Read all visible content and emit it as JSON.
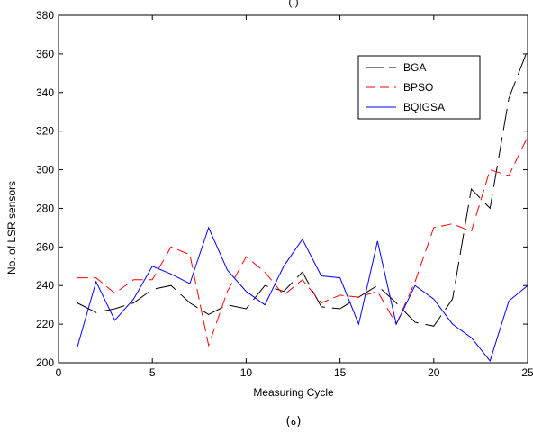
{
  "chart_data": {
    "type": "line",
    "title_fragment": "(.)",
    "xlabel": "Measuring Cycle",
    "ylabel": "No. of LSR sensors",
    "caption": "(ه)",
    "xlim": [
      0,
      25
    ],
    "ylim": [
      200,
      380
    ],
    "xticks": [
      "0",
      "5",
      "10",
      "15",
      "20",
      "25"
    ],
    "yticks": [
      "200",
      "220",
      "240",
      "260",
      "280",
      "300",
      "320",
      "340",
      "360",
      "380"
    ],
    "grid": false,
    "legend_position": "top-right",
    "series": [
      {
        "name": "BGA",
        "color": "#000000",
        "style": "dashed",
        "x": [
          1,
          2,
          3,
          4,
          5,
          6,
          7,
          8,
          9,
          10,
          11,
          12,
          13,
          14,
          15,
          16,
          17,
          18,
          19,
          20,
          21,
          22,
          23,
          24,
          25
        ],
        "y": [
          231,
          226,
          228,
          231,
          238,
          240,
          231,
          225,
          230,
          228,
          240,
          237,
          247,
          229,
          228,
          234,
          240,
          231,
          221,
          219,
          233,
          290,
          280,
          337,
          362
        ]
      },
      {
        "name": "BPSO",
        "color": "#ff0000",
        "style": "dashed",
        "x": [
          1,
          2,
          3,
          4,
          5,
          6,
          7,
          8,
          9,
          10,
          11,
          12,
          13,
          14,
          15,
          16,
          17,
          18,
          19,
          20,
          21,
          22,
          23,
          24,
          25
        ],
        "y": [
          244,
          244,
          236,
          243,
          243,
          260,
          256,
          209,
          237,
          255,
          247,
          235,
          243,
          231,
          235,
          234,
          237,
          220,
          242,
          270,
          272,
          268,
          300,
          297,
          317
        ]
      },
      {
        "name": "BQIGSA",
        "color": "#0000ff",
        "style": "solid",
        "x": [
          1,
          2,
          3,
          4,
          5,
          6,
          7,
          8,
          9,
          10,
          11,
          12,
          13,
          14,
          15,
          16,
          17,
          18,
          19,
          20,
          21,
          22,
          23,
          24,
          25
        ],
        "y": [
          208,
          242,
          222,
          233,
          250,
          246,
          241,
          270,
          248,
          237,
          230,
          250,
          264,
          245,
          244,
          220,
          263,
          220,
          240,
          233,
          220,
          213,
          201,
          232,
          240
        ]
      }
    ]
  }
}
